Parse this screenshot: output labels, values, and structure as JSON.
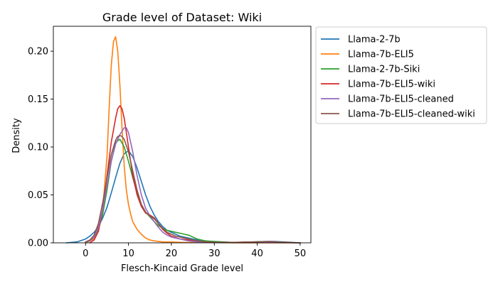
{
  "chart_data": {
    "type": "line",
    "title": "Grade level of Dataset: Wiki",
    "xlabel": "Flesch-Kincaid Grade level",
    "ylabel": "Density",
    "xlim": [
      -7.5,
      52.5
    ],
    "ylim": [
      0,
      0.226
    ],
    "xticks": [
      0,
      10,
      20,
      30,
      40,
      50
    ],
    "yticks": [
      0.0,
      0.05,
      0.1,
      0.15,
      0.2
    ],
    "ytick_labels": [
      "0.00",
      "0.05",
      "0.10",
      "0.15",
      "0.20"
    ],
    "grid": false,
    "legend_position": "outside-right",
    "series": [
      {
        "name": "Llama-2-7b",
        "color": "#1f77b4",
        "x": [
          -4.5,
          -2,
          0,
          1,
          2,
          3,
          4,
          5,
          6,
          7,
          8,
          9,
          10,
          11,
          12,
          13,
          14,
          15,
          16,
          17,
          18,
          19,
          20,
          21,
          22,
          24,
          26,
          28,
          30,
          33,
          36,
          39,
          42,
          44,
          46,
          48,
          50
        ],
        "y": [
          0.0,
          0.001,
          0.004,
          0.007,
          0.011,
          0.017,
          0.026,
          0.037,
          0.052,
          0.068,
          0.083,
          0.093,
          0.096,
          0.09,
          0.078,
          0.064,
          0.05,
          0.038,
          0.029,
          0.022,
          0.017,
          0.013,
          0.011,
          0.009,
          0.007,
          0.005,
          0.003,
          0.002,
          0.001,
          0.0005,
          0.0005,
          0.001,
          0.0015,
          0.0015,
          0.001,
          0.0005,
          0.0
        ]
      },
      {
        "name": "Llama-7b-ELI5",
        "color": "#ff7f0e",
        "x": [
          0,
          2,
          3,
          4,
          5,
          5.5,
          6,
          6.5,
          7,
          7.5,
          8,
          8.5,
          9,
          9.5,
          10,
          10.5,
          11,
          12,
          13,
          14,
          15,
          16,
          18,
          20,
          22,
          24,
          26,
          30,
          35,
          40,
          45,
          50
        ],
        "y": [
          0.0,
          0.004,
          0.012,
          0.035,
          0.09,
          0.14,
          0.185,
          0.21,
          0.215,
          0.2,
          0.165,
          0.12,
          0.08,
          0.055,
          0.04,
          0.03,
          0.022,
          0.014,
          0.009,
          0.005,
          0.003,
          0.002,
          0.001,
          0.0008,
          0.0005,
          0.0004,
          0.0003,
          0.0002,
          0.0001,
          0.0,
          0.0,
          0.0
        ]
      },
      {
        "name": "Llama-2-7b-Siki",
        "color": "#2ca02c",
        "x": [
          0,
          1,
          2,
          3,
          4,
          5,
          6,
          7,
          8,
          9,
          10,
          11,
          12,
          13,
          14,
          15,
          16,
          17,
          18,
          19,
          20,
          21,
          22,
          23,
          24,
          25,
          26,
          27,
          28,
          30,
          32,
          34,
          36,
          40,
          45,
          50
        ],
        "y": [
          0.001,
          0.002,
          0.006,
          0.014,
          0.03,
          0.055,
          0.085,
          0.105,
          0.108,
          0.1,
          0.085,
          0.068,
          0.052,
          0.04,
          0.032,
          0.027,
          0.022,
          0.018,
          0.015,
          0.013,
          0.012,
          0.011,
          0.01,
          0.009,
          0.008,
          0.006,
          0.004,
          0.003,
          0.002,
          0.0015,
          0.001,
          0.0005,
          0.0005,
          0.001,
          0.0005,
          0.0
        ]
      },
      {
        "name": "Llama-7b-ELI5-wiki",
        "color": "#d62728",
        "x": [
          1,
          2,
          3,
          4,
          5,
          6,
          7,
          7.5,
          8,
          8.5,
          9,
          9.5,
          10,
          10.5,
          11,
          12,
          13,
          14,
          15,
          16,
          17,
          18,
          19,
          20,
          22,
          24,
          26,
          28,
          30,
          35,
          40,
          45,
          50
        ],
        "y": [
          0.0,
          0.003,
          0.012,
          0.035,
          0.07,
          0.105,
          0.13,
          0.14,
          0.143,
          0.14,
          0.13,
          0.115,
          0.1,
          0.085,
          0.07,
          0.05,
          0.038,
          0.031,
          0.029,
          0.026,
          0.02,
          0.014,
          0.01,
          0.007,
          0.004,
          0.003,
          0.002,
          0.001,
          0.0005,
          0.0005,
          0.001,
          0.0005,
          0.0
        ]
      },
      {
        "name": "Llama-7b-ELI5-cleaned",
        "color": "#9467bd",
        "x": [
          0,
          1,
          2,
          3,
          4,
          5,
          6,
          7,
          8,
          9,
          9.5,
          10,
          11,
          12,
          13,
          14,
          15,
          16,
          17,
          18,
          19,
          20,
          21,
          22,
          24,
          26,
          28,
          30,
          35,
          40,
          45,
          50
        ],
        "y": [
          0.001,
          0.002,
          0.006,
          0.016,
          0.035,
          0.06,
          0.085,
          0.103,
          0.113,
          0.12,
          0.12,
          0.115,
          0.095,
          0.07,
          0.05,
          0.036,
          0.028,
          0.022,
          0.016,
          0.011,
          0.008,
          0.006,
          0.005,
          0.004,
          0.002,
          0.001,
          0.001,
          0.0005,
          0.0005,
          0.0005,
          0.0003,
          0.0
        ]
      },
      {
        "name": "Llama-7b-ELI5-cleaned-wiki",
        "color": "#8c564b",
        "x": [
          0,
          1,
          2,
          3,
          4,
          5,
          6,
          7,
          7.5,
          8,
          8.5,
          9,
          10,
          11,
          12,
          13,
          14,
          15,
          16,
          17,
          18,
          19,
          20,
          21,
          22,
          24,
          26,
          28,
          30,
          35,
          40,
          43,
          46,
          50
        ],
        "y": [
          0.001,
          0.003,
          0.008,
          0.02,
          0.042,
          0.068,
          0.092,
          0.107,
          0.111,
          0.112,
          0.111,
          0.108,
          0.095,
          0.075,
          0.055,
          0.04,
          0.032,
          0.028,
          0.025,
          0.02,
          0.015,
          0.011,
          0.009,
          0.007,
          0.006,
          0.004,
          0.002,
          0.001,
          0.0005,
          0.0005,
          0.001,
          0.0015,
          0.0005,
          0.0
        ]
      }
    ]
  }
}
